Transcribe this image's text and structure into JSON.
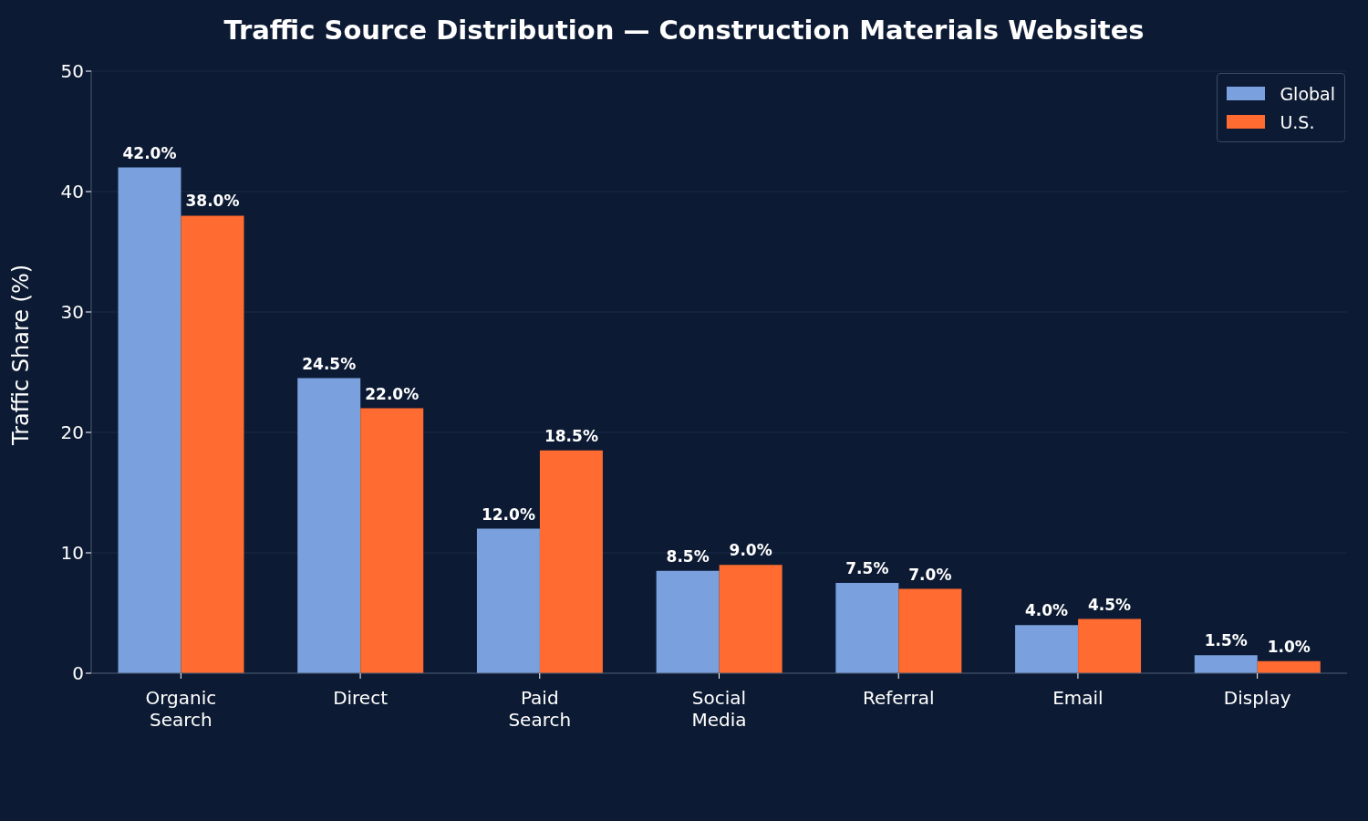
{
  "chart_data": {
    "type": "bar",
    "title": "Traffic Source Distribution — Construction Materials Websites",
    "ylabel": "Traffic Share (%)",
    "categories": [
      "Organic Search",
      "Direct",
      "Paid Search",
      "Social Media",
      "Referral",
      "Email",
      "Display"
    ],
    "series": [
      {
        "name": "Global",
        "color": "#7aa1de",
        "values": [
          42.0,
          24.5,
          12.0,
          8.5,
          7.5,
          4.0,
          1.5
        ],
        "value_labels": [
          "42.0%",
          "24.5%",
          "12.0%",
          "8.5%",
          "7.5%",
          "4.0%",
          "1.5%"
        ]
      },
      {
        "name": "U.S.",
        "color": "#ff6b30",
        "values": [
          38.0,
          22.0,
          18.5,
          9.0,
          7.0,
          4.5,
          1.0
        ],
        "value_labels": [
          "38.0%",
          "22.0%",
          "18.5%",
          "9.0%",
          "7.0%",
          "4.5%",
          "1.0%"
        ]
      }
    ],
    "ylim": [
      0,
      50
    ],
    "yticks": [
      0,
      10,
      20,
      30,
      40,
      50
    ],
    "grid": "y",
    "legend": "top right"
  }
}
